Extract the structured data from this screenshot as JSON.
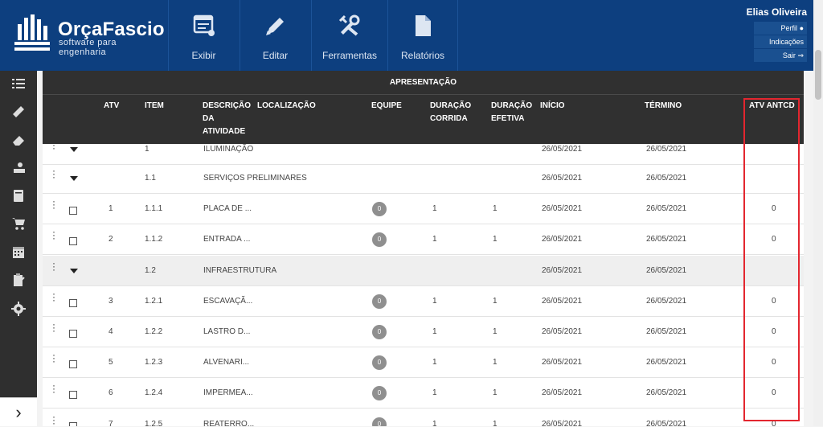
{
  "brand": {
    "name": "OrçaFascio",
    "tagline": "software para engenharia"
  },
  "nav": [
    {
      "label": "Exibir",
      "icon": "display-icon"
    },
    {
      "label": "Editar",
      "icon": "pencil-icon"
    },
    {
      "label": "Ferramentas",
      "icon": "tools-icon"
    },
    {
      "label": "Relatórios",
      "icon": "report-icon"
    }
  ],
  "user": {
    "name": "Elias Oliveira",
    "profile": "Perfil",
    "referrals": "Indicações",
    "logout": "Sair"
  },
  "sidebar": [
    "list-icon",
    "ruler-icon",
    "eraser-icon",
    "lock-person-icon",
    "book-icon",
    "cart-icon",
    "calendar-icon",
    "clipboard-icon",
    "gear-icon"
  ],
  "sidebar_expand": "›",
  "table": {
    "group_title": "APRESENTAÇÃO",
    "columns": {
      "atv": "ATV",
      "item": "ITEM",
      "descricao": "DESCRIÇÃO DA ATIVIDADE",
      "localizacao": "LOCALIZAÇÃO",
      "equipe": "EQUIPE",
      "duracao_corrida": "DURAÇÃO CORRIDA",
      "duracao_efetiva": "DURAÇÃO EFETIVA",
      "inicio": "INÍCIO",
      "termino": "TÉRMINO",
      "atv_antcd": "ATV ANTCD"
    },
    "rows": [
      {
        "kind": "group",
        "atv": "",
        "item": "1",
        "desc": "ILUMINAÇÃO",
        "equipe": "",
        "dc": "",
        "de": "",
        "inicio": "26/05/2021",
        "termino": "26/05/2021",
        "antcd": ""
      },
      {
        "kind": "group",
        "atv": "",
        "item": "1.1",
        "desc": "SERVIÇOS PRELIMINARES",
        "equipe": "",
        "dc": "",
        "de": "",
        "inicio": "26/05/2021",
        "termino": "26/05/2021",
        "antcd": ""
      },
      {
        "kind": "task",
        "atv": "1",
        "item": "1.1.1",
        "desc": "PLACA DE ...",
        "equipe": "0",
        "dc": "1",
        "de": "1",
        "inicio": "26/05/2021",
        "termino": "26/05/2021",
        "antcd": "0"
      },
      {
        "kind": "task",
        "atv": "2",
        "item": "1.1.2",
        "desc": "ENTRADA ...",
        "equipe": "0",
        "dc": "1",
        "de": "1",
        "inicio": "26/05/2021",
        "termino": "26/05/2021",
        "antcd": "0"
      },
      {
        "kind": "group",
        "grey": true,
        "atv": "",
        "item": "1.2",
        "desc": "INFRAESTRUTURA",
        "equipe": "",
        "dc": "",
        "de": "",
        "inicio": "26/05/2021",
        "termino": "26/05/2021",
        "antcd": ""
      },
      {
        "kind": "task",
        "atv": "3",
        "item": "1.2.1",
        "desc": "ESCAVAÇÃ...",
        "equipe": "0",
        "dc": "1",
        "de": "1",
        "inicio": "26/05/2021",
        "termino": "26/05/2021",
        "antcd": "0"
      },
      {
        "kind": "task",
        "atv": "4",
        "item": "1.2.2",
        "desc": "LASTRO D...",
        "equipe": "0",
        "dc": "1",
        "de": "1",
        "inicio": "26/05/2021",
        "termino": "26/05/2021",
        "antcd": "0"
      },
      {
        "kind": "task",
        "atv": "5",
        "item": "1.2.3",
        "desc": "ALVENARI...",
        "equipe": "0",
        "dc": "1",
        "de": "1",
        "inicio": "26/05/2021",
        "termino": "26/05/2021",
        "antcd": "0"
      },
      {
        "kind": "task",
        "atv": "6",
        "item": "1.2.4",
        "desc": "IMPERMEA...",
        "equipe": "0",
        "dc": "1",
        "de": "1",
        "inicio": "26/05/2021",
        "termino": "26/05/2021",
        "antcd": "0"
      },
      {
        "kind": "task",
        "atv": "7",
        "item": "1.2.5",
        "desc": "REATERRO...",
        "equipe": "0",
        "dc": "1",
        "de": "1",
        "inicio": "26/05/2021",
        "termino": "26/05/2021",
        "antcd": "0"
      }
    ]
  },
  "colors": {
    "topbar": "#0d3f7f",
    "header": "#303030",
    "sidebar": "#2f2f2f",
    "highlight": "#e3262f"
  }
}
